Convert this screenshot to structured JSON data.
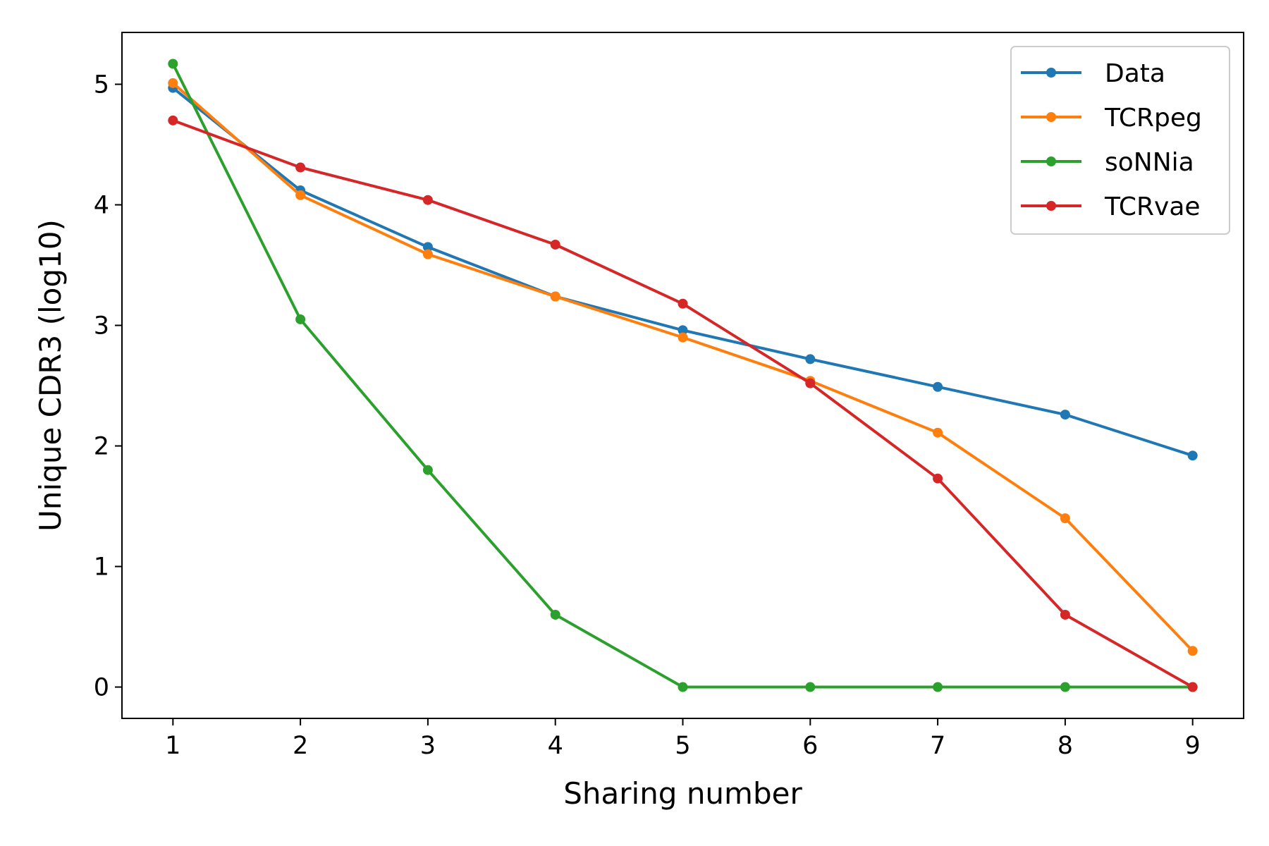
{
  "chart_data": {
    "type": "line",
    "title": "",
    "xlabel": "Sharing number",
    "ylabel": "Unique CDR3 (log10)",
    "x": [
      1,
      2,
      3,
      4,
      5,
      6,
      7,
      8,
      9
    ],
    "xticks": [
      1,
      2,
      3,
      4,
      5,
      6,
      7,
      8,
      9
    ],
    "yticks": [
      0,
      1,
      2,
      3,
      4,
      5
    ],
    "xlim": [
      0.6,
      9.4
    ],
    "ylim": [
      -0.26,
      5.43
    ],
    "grid": false,
    "legend_position": "top-right",
    "series": [
      {
        "name": "Data",
        "color": "#1f77b4",
        "values": [
          4.97,
          4.12,
          3.65,
          3.24,
          2.96,
          2.72,
          2.49,
          2.26,
          1.92
        ]
      },
      {
        "name": "TCRpeg",
        "color": "#ff7f0e",
        "values": [
          5.01,
          4.08,
          3.59,
          3.24,
          2.9,
          2.54,
          2.11,
          1.4,
          0.3
        ]
      },
      {
        "name": "soNNia",
        "color": "#2ca02c",
        "values": [
          5.17,
          3.05,
          1.8,
          0.6,
          0.0,
          0.0,
          0.0,
          0.0,
          0.0
        ]
      },
      {
        "name": "TCRvae",
        "color": "#d62728",
        "values": [
          4.7,
          4.31,
          4.04,
          3.67,
          3.18,
          2.52,
          1.73,
          0.6,
          0.0
        ]
      }
    ]
  }
}
